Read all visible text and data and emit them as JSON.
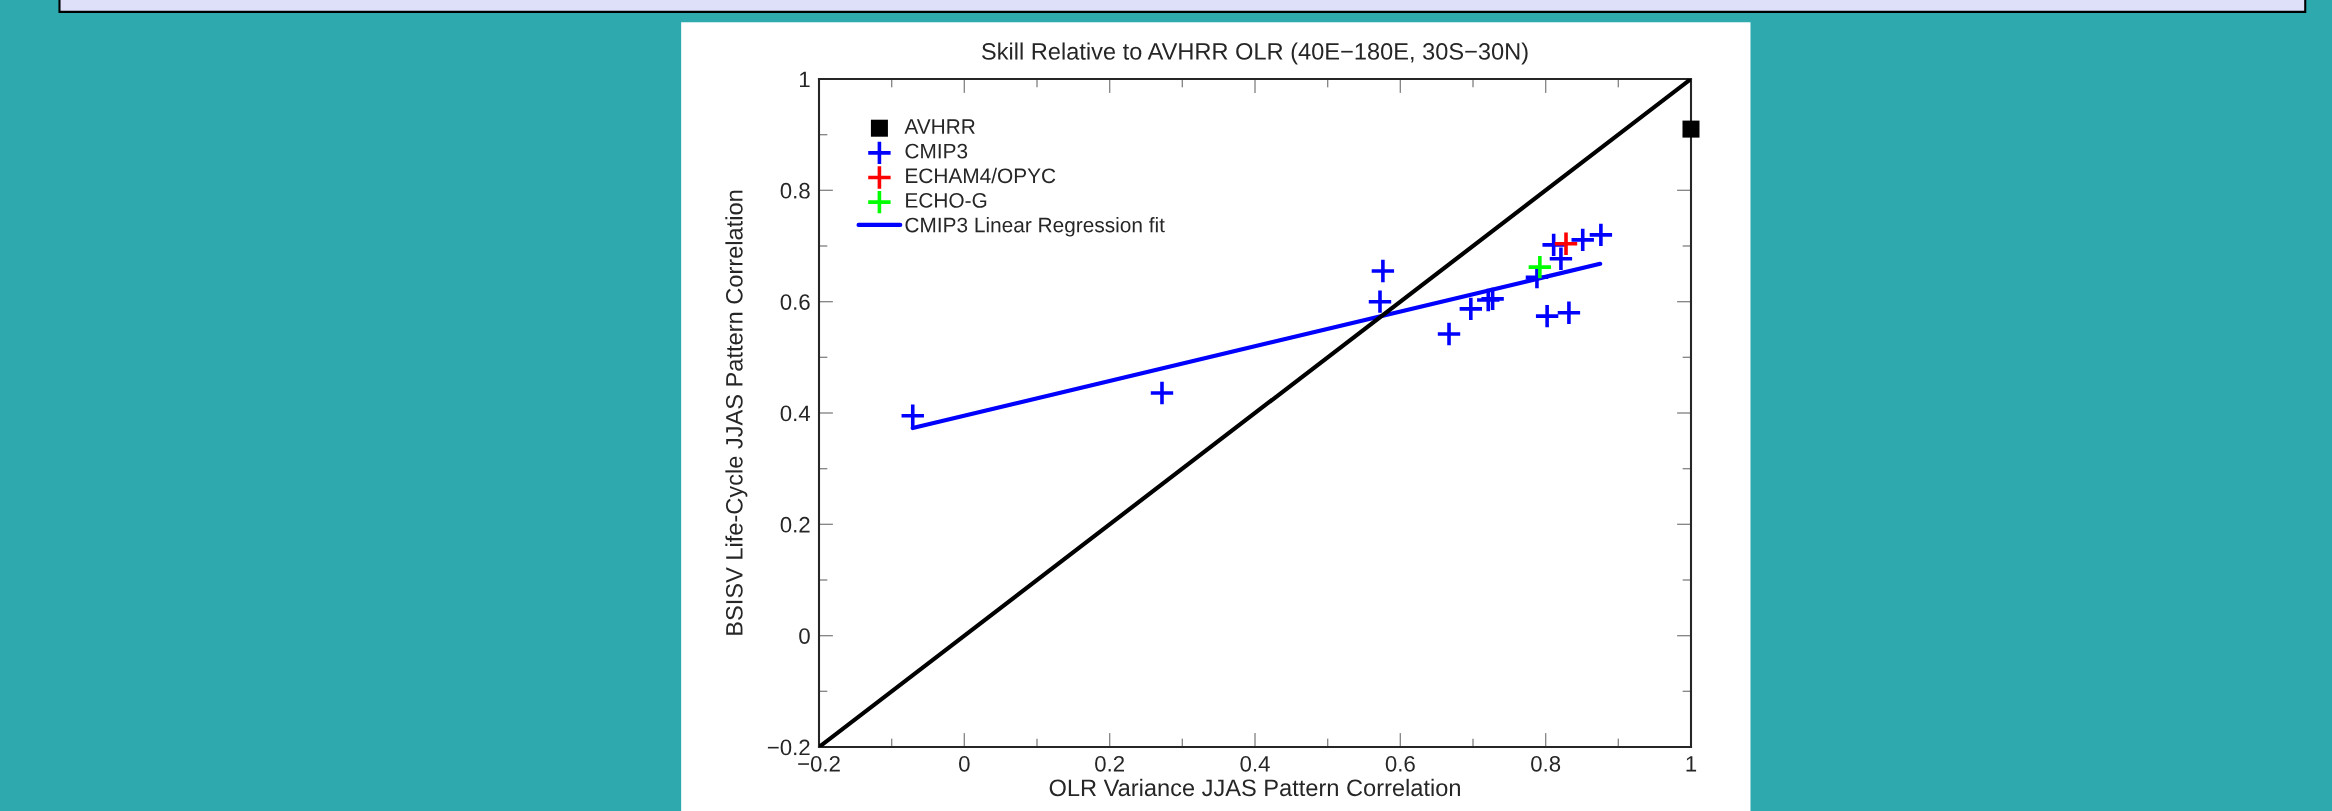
{
  "chart_data": {
    "type": "scatter",
    "title": "Skill Relative to AVHRR OLR (40E−180E, 30S−30N)",
    "xlabel": "OLR Variance JJAS Pattern Correlation",
    "ylabel": "BSISV Life-Cycle JJAS Pattern Correlation",
    "xlim": [
      -0.2,
      1
    ],
    "ylim": [
      -0.2,
      1
    ],
    "xticks": [
      {
        "value": -0.2,
        "label": "−0.2"
      },
      0,
      0.2,
      0.4,
      0.6,
      0.8,
      1
    ],
    "yticks": [
      {
        "value": -0.2,
        "label": "−0.2"
      },
      0,
      0.2,
      0.4,
      0.6,
      0.8,
      1
    ],
    "grid": false,
    "legend": "top left",
    "series": [
      {
        "name": "AVHRR",
        "marker": "square",
        "color": "#000000",
        "x": [
          1.0
        ],
        "values": [
          0.91
        ]
      },
      {
        "name": "CMIP3",
        "marker": "cross",
        "color": "#0000ff",
        "x": [
          -0.071,
          0.272,
          0.572,
          0.576,
          0.667,
          0.697,
          0.721,
          0.727,
          0.788,
          0.802,
          0.811,
          0.821,
          0.832,
          0.851,
          0.876
        ],
        "values": [
          0.395,
          0.436,
          0.6,
          0.655,
          0.542,
          0.587,
          0.603,
          0.605,
          0.644,
          0.574,
          0.702,
          0.677,
          0.58,
          0.711,
          0.72
        ]
      },
      {
        "name": "ECHAM4/OPYC",
        "marker": "cross",
        "color": "#ff0000",
        "x": [
          0.828
        ],
        "values": [
          0.704
        ]
      },
      {
        "name": "ECHO-G",
        "marker": "cross",
        "color": "#00ff00",
        "x": [
          0.792
        ],
        "values": [
          0.662
        ]
      },
      {
        "name": "CMIP3 Linear Regression fit",
        "type": "line",
        "marker": "none",
        "line_style": "solid",
        "color": "#0000ff",
        "x": [
          -0.071,
          0.875
        ],
        "values": [
          0.373,
          0.668
        ]
      },
      {
        "type": "line",
        "marker": "none",
        "line_style": "solid",
        "color": "#000000",
        "x": [
          -0.2,
          1.0
        ],
        "values": [
          -0.2,
          1.0
        ]
      }
    ]
  }
}
